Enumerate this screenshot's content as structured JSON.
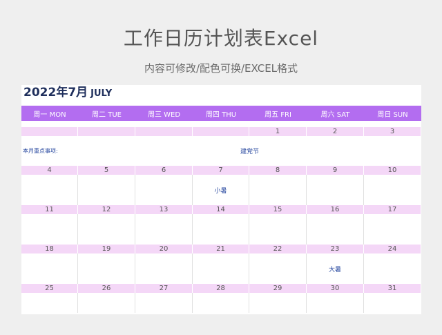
{
  "page": {
    "title": "工作日历计划表Excel",
    "subtitle": "内容可修改/配色可换/EXCEL格式"
  },
  "calendar": {
    "month_cn": "2022年7月",
    "month_en": "JULY",
    "weekdays": [
      "周一 MON",
      "周二 TUE",
      "周三 WED",
      "周四 THU",
      "周五 FRI",
      "周六 SAT",
      "周日 SUN"
    ],
    "focus_label": "本月重点事项:",
    "focus_text": "建党节",
    "weeks": [
      [
        "",
        "",
        "",
        "",
        "1",
        "2",
        "3"
      ],
      [
        "4",
        "5",
        "6",
        "7",
        "8",
        "9",
        "10"
      ],
      [
        "11",
        "12",
        "13",
        "14",
        "15",
        "16",
        "17"
      ],
      [
        "18",
        "19",
        "20",
        "21",
        "22",
        "23",
        "24"
      ],
      [
        "25",
        "26",
        "27",
        "28",
        "29",
        "30",
        "31"
      ]
    ],
    "notes": [
      [
        "",
        "",
        "",
        "",
        "",
        "",
        ""
      ],
      [
        "",
        "",
        "",
        "小暑",
        "",
        "",
        ""
      ],
      [
        "",
        "",
        "",
        "",
        "",
        "",
        ""
      ],
      [
        "",
        "",
        "",
        "",
        "",
        "大暑",
        ""
      ],
      [
        "",
        "",
        "",
        "",
        "",
        "",
        ""
      ]
    ],
    "colors": {
      "header_bg": "#b36df0",
      "date_band_bg": "#f4d7f7",
      "title_color": "#1f2f5c",
      "note_color": "#2a4aa0"
    }
  }
}
